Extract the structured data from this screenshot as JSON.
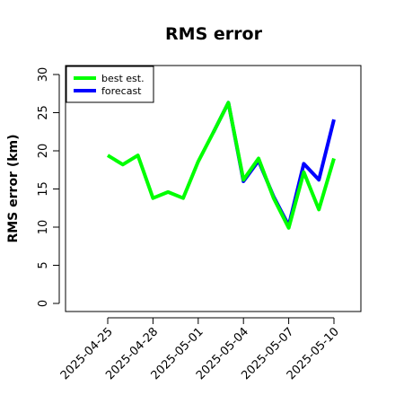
{
  "chart_data": {
    "type": "line",
    "title": "RMS error",
    "ylabel": "RMS error (km)",
    "xlabel": "",
    "ylim": [
      0,
      30
    ],
    "yticks": [
      0,
      5,
      10,
      15,
      20,
      25,
      30
    ],
    "xlim": [
      "2025-04-23",
      "2025-05-12"
    ],
    "xticks": [
      "2025-04-25",
      "2025-04-28",
      "2025-05-01",
      "2025-05-04",
      "2025-05-07",
      "2025-05-10"
    ],
    "highlight_tick": "2025-05-01",
    "highlight_color": "#228B22",
    "legend": "top-left",
    "grid": false,
    "series": [
      {
        "name": "best est.",
        "color": "#00ff00",
        "points": [
          [
            "2025-04-25 00:00",
            19.4
          ],
          [
            "2025-04-26 00:00",
            18.2
          ],
          [
            "2025-04-27 00:00",
            19.4
          ],
          [
            "2025-04-28 00:00",
            13.8
          ],
          [
            "2025-04-29 00:00",
            14.6
          ],
          [
            "2025-04-30 00:00",
            13.8
          ],
          [
            "2025-05-01 00:00",
            18.6
          ],
          [
            "2025-05-02 00:00",
            22.4
          ]
        ]
      },
      {
        "name": "forecast",
        "color": "#0000ff",
        "points": [
          [
            "2025-05-02 00:00",
            22.4
          ],
          [
            "2025-05-03 00:00",
            26.3
          ],
          [
            "2025-05-04 00:00",
            16.0
          ],
          [
            "2025-05-05 00:00",
            18.7
          ],
          [
            "2025-05-06 00:00",
            14.0
          ],
          [
            "2025-05-07 00:00",
            10.2
          ],
          [
            "2025-05-08 00:00",
            18.3
          ],
          [
            "2025-05-09 00:00",
            16.2
          ],
          [
            "2025-05-10 00:00",
            24.1
          ]
        ]
      },
      {
        "name": "best est.",
        "color": "#00ff00",
        "points": [
          [
            "2025-05-02 00:00",
            22.4
          ],
          [
            "2025-05-03 00:00",
            26.3
          ],
          [
            "2025-05-04 00:00",
            16.2
          ],
          [
            "2025-05-05 00:00",
            19.0
          ],
          [
            "2025-05-06 00:00",
            13.8
          ],
          [
            "2025-05-07 00:00",
            9.9
          ],
          [
            "2025-05-08 00:00",
            17.2
          ],
          [
            "2025-05-09 00:00",
            12.3
          ],
          [
            "2025-05-10 00:00",
            19.0
          ]
        ]
      }
    ]
  }
}
